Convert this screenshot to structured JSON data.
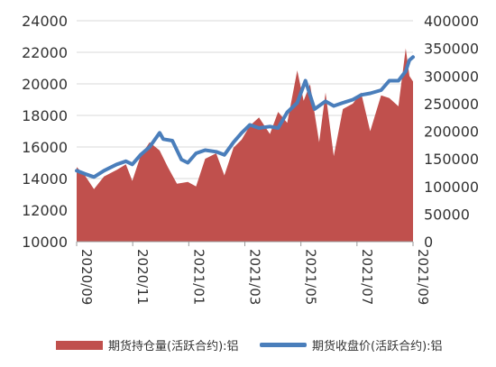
{
  "chart_data": {
    "type": "area+line",
    "title": "",
    "xlabel": "",
    "ylabel_left": "",
    "ylabel_right": "",
    "x_tick_labels": [
      "2020/09",
      "2020/11",
      "2021/01",
      "2021/03",
      "2021/05",
      "2021/07",
      "2021/09"
    ],
    "left_axis": {
      "ylim": [
        10000,
        24000
      ],
      "ticks": [
        10000,
        12000,
        14000,
        16000,
        18000,
        20000,
        22000,
        24000
      ]
    },
    "right_axis": {
      "ylim": [
        0,
        400000
      ],
      "ticks": [
        0,
        50000,
        100000,
        150000,
        200000,
        250000,
        300000,
        350000,
        400000
      ]
    },
    "grid": true,
    "legend_placement": "bottom",
    "series": [
      {
        "name": "期货持仓量(活跃合约):铝",
        "kind": "area",
        "axis": "right",
        "color": "#C0504D",
        "x": [
          "2020/09/01",
          "2020/09/10",
          "2020/09/20",
          "2020/10/01",
          "2020/10/15",
          "2020/10/25",
          "2020/11/01",
          "2020/11/10",
          "2020/11/20",
          "2020/12/01",
          "2020/12/10",
          "2020/12/20",
          "2021/01/01",
          "2021/01/10",
          "2021/01/20",
          "2021/02/01",
          "2021/02/10",
          "2021/02/20",
          "2021/03/01",
          "2021/03/10",
          "2021/03/20",
          "2021/04/01",
          "2021/04/10",
          "2021/04/20",
          "2021/05/01",
          "2021/05/08",
          "2021/05/15",
          "2021/05/25",
          "2021/06/01",
          "2021/06/10",
          "2021/06/20",
          "2021/07/01",
          "2021/07/10",
          "2021/07/20",
          "2021/08/01",
          "2021/08/10",
          "2021/08/20",
          "2021/08/28",
          "2021/09/01",
          "2021/09/05"
        ],
        "values": [
          135000,
          120000,
          95000,
          118000,
          130000,
          140000,
          110000,
          155000,
          180000,
          165000,
          135000,
          105000,
          108000,
          100000,
          150000,
          160000,
          120000,
          170000,
          185000,
          210000,
          225000,
          195000,
          235000,
          215000,
          310000,
          255000,
          285000,
          180000,
          270000,
          155000,
          240000,
          250000,
          270000,
          200000,
          265000,
          260000,
          245000,
          350000,
          300000,
          290000
        ]
      },
      {
        "name": "期货收盘价(活跃合约):铝",
        "kind": "line",
        "axis": "left",
        "color": "#4A7EBB",
        "x": [
          "2020/09/01",
          "2020/09/10",
          "2020/09/20",
          "2020/10/01",
          "2020/10/15",
          "2020/10/25",
          "2020/11/01",
          "2020/11/10",
          "2020/11/20",
          "2020/12/01",
          "2020/12/05",
          "2020/12/15",
          "2020/12/25",
          "2021/01/01",
          "2021/01/10",
          "2021/01/20",
          "2021/02/01",
          "2021/02/10",
          "2021/02/20",
          "2021/03/01",
          "2021/03/10",
          "2021/03/20",
          "2021/04/01",
          "2021/04/10",
          "2021/04/20",
          "2021/05/01",
          "2021/05/10",
          "2021/05/20",
          "2021/06/01",
          "2021/06/10",
          "2021/06/20",
          "2021/07/01",
          "2021/07/10",
          "2021/07/20",
          "2021/08/01",
          "2021/08/10",
          "2021/08/20",
          "2021/08/28",
          "2021/09/01",
          "2021/09/05"
        ],
        "values": [
          14500,
          14300,
          14100,
          14500,
          14900,
          15100,
          14900,
          15500,
          16000,
          16900,
          16500,
          16400,
          15200,
          15000,
          15600,
          15800,
          15700,
          15500,
          16300,
          16900,
          17400,
          17200,
          17300,
          17200,
          18200,
          18800,
          20200,
          18400,
          18900,
          18600,
          18800,
          19000,
          19300,
          19400,
          19600,
          20200,
          20200,
          20800,
          21500,
          21700
        ]
      }
    ]
  }
}
